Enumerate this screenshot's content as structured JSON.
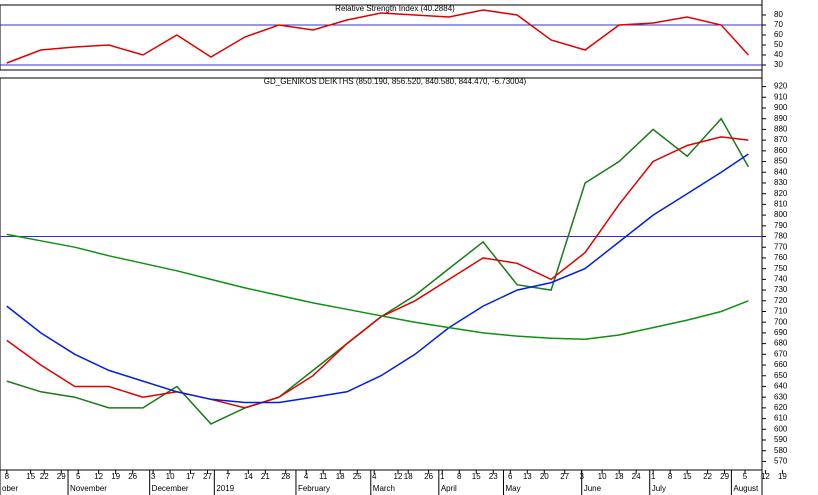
{
  "chart_data": [
    {
      "type": "line",
      "title": "Relative Strength Index (40.2884)",
      "x": [
        0,
        10,
        20,
        30,
        40,
        50,
        60,
        70,
        80,
        90,
        100,
        110,
        120,
        130,
        140,
        150,
        160,
        170,
        180,
        190,
        200,
        210,
        218
      ],
      "series": [
        {
          "color": "#e00000",
          "values": [
            32,
            45,
            48,
            50,
            40,
            60,
            38,
            58,
            70,
            65,
            75,
            82,
            80,
            78,
            85,
            80,
            55,
            45,
            70,
            72,
            78,
            70,
            40
          ]
        }
      ],
      "xlim": [
        -2,
        222
      ],
      "ylim": [
        25,
        90
      ],
      "yticks": [
        30,
        40,
        50,
        60,
        70,
        80
      ],
      "hlines": [
        {
          "value": 70,
          "color": "#3030d0"
        },
        {
          "value": 30,
          "color": "#3030d0"
        }
      ]
    },
    {
      "type": "line",
      "title": "GD_GENIKOS DEIKTHS (850.190, 856.520, 840.580, 844.470, -6.73004)",
      "x": [
        0,
        10,
        20,
        30,
        40,
        50,
        60,
        70,
        80,
        90,
        100,
        110,
        120,
        130,
        140,
        150,
        160,
        170,
        180,
        190,
        200,
        210,
        218
      ],
      "series": [
        {
          "color": "#1a7a1a",
          "values": [
            645,
            635,
            630,
            620,
            620,
            640,
            605,
            620,
            630,
            655,
            680,
            705,
            725,
            750,
            775,
            735,
            730,
            830,
            850,
            880,
            855,
            890,
            845
          ]
        },
        {
          "color": "#e00000",
          "values": [
            683,
            660,
            640,
            640,
            630,
            635,
            628,
            620,
            630,
            650,
            680,
            705,
            720,
            740,
            760,
            755,
            740,
            765,
            810,
            850,
            865,
            873,
            870
          ]
        },
        {
          "color": "#0020e0",
          "values": [
            715,
            690,
            670,
            655,
            645,
            635,
            628,
            625,
            625,
            630,
            635,
            650,
            670,
            695,
            715,
            730,
            737,
            750,
            775,
            800,
            820,
            840,
            857
          ]
        },
        {
          "color": "#109010",
          "values": [
            782,
            776,
            770,
            762,
            755,
            748,
            740,
            732,
            725,
            718,
            712,
            706,
            700,
            695,
            690,
            687,
            685,
            684,
            688,
            695,
            702,
            710,
            720
          ]
        }
      ],
      "xlim": [
        -2,
        222
      ],
      "ylim": [
        562,
        928
      ],
      "yticks": [
        570,
        580,
        590,
        600,
        610,
        620,
        630,
        640,
        650,
        660,
        670,
        680,
        690,
        700,
        710,
        720,
        730,
        740,
        750,
        760,
        770,
        780,
        790,
        800,
        810,
        820,
        830,
        840,
        850,
        860,
        870,
        880,
        890,
        900,
        910,
        920
      ],
      "hlines": [
        {
          "value": 780,
          "color": "#3030d0"
        }
      ],
      "xticks": [
        {
          "value": 0,
          "label": "8"
        },
        {
          "value": 7,
          "label": "15"
        },
        {
          "value": 11,
          "label": "22"
        },
        {
          "value": 16,
          "label": "29"
        },
        {
          "value": 21,
          "label": "5"
        },
        {
          "value": 27,
          "label": "12"
        },
        {
          "value": 32,
          "label": "19"
        },
        {
          "value": 37,
          "label": "26"
        },
        {
          "value": 43,
          "label": "3"
        },
        {
          "value": 48,
          "label": "10"
        },
        {
          "value": 54,
          "label": "17"
        },
        {
          "value": 59,
          "label": "27"
        },
        {
          "value": 65,
          "label": "7"
        },
        {
          "value": 71,
          "label": "14"
        },
        {
          "value": 76,
          "label": "21"
        },
        {
          "value": 82,
          "label": "28"
        },
        {
          "value": 88,
          "label": "4"
        },
        {
          "value": 93,
          "label": "11"
        },
        {
          "value": 98,
          "label": "18"
        },
        {
          "value": 103,
          "label": "25"
        },
        {
          "value": 108,
          "label": "4"
        },
        {
          "value": 115,
          "label": "12"
        },
        {
          "value": 118,
          "label": "18"
        },
        {
          "value": 124,
          "label": "26"
        },
        {
          "value": 128,
          "label": "1"
        },
        {
          "value": 133,
          "label": "8"
        },
        {
          "value": 138,
          "label": "15"
        },
        {
          "value": 143,
          "label": "23"
        },
        {
          "value": 148,
          "label": "6"
        },
        {
          "value": 153,
          "label": "13"
        },
        {
          "value": 158,
          "label": "20"
        },
        {
          "value": 164,
          "label": "27"
        },
        {
          "value": 169,
          "label": "3"
        },
        {
          "value": 175,
          "label": "10"
        },
        {
          "value": 180,
          "label": "18"
        },
        {
          "value": 185,
          "label": "24"
        },
        {
          "value": 190,
          "label": "1"
        },
        {
          "value": 195,
          "label": "8"
        },
        {
          "value": 200,
          "label": "15"
        },
        {
          "value": 206,
          "label": "22"
        },
        {
          "value": 211,
          "label": "29"
        },
        {
          "value": 217,
          "label": "5"
        },
        {
          "value": 223,
          "label": "12"
        },
        {
          "value": 228,
          "label": "19"
        }
      ],
      "month_labels": [
        {
          "value": -2,
          "label": "ober"
        },
        {
          "value": 18,
          "label": "November"
        },
        {
          "value": 42,
          "label": "December"
        },
        {
          "value": 61,
          "label": "2019"
        },
        {
          "value": 85,
          "label": "February"
        },
        {
          "value": 107,
          "label": "March"
        },
        {
          "value": 127,
          "label": "April"
        },
        {
          "value": 146,
          "label": "May"
        },
        {
          "value": 169,
          "label": "June"
        },
        {
          "value": 189,
          "label": "July"
        },
        {
          "value": 213,
          "label": "August"
        }
      ]
    }
  ]
}
